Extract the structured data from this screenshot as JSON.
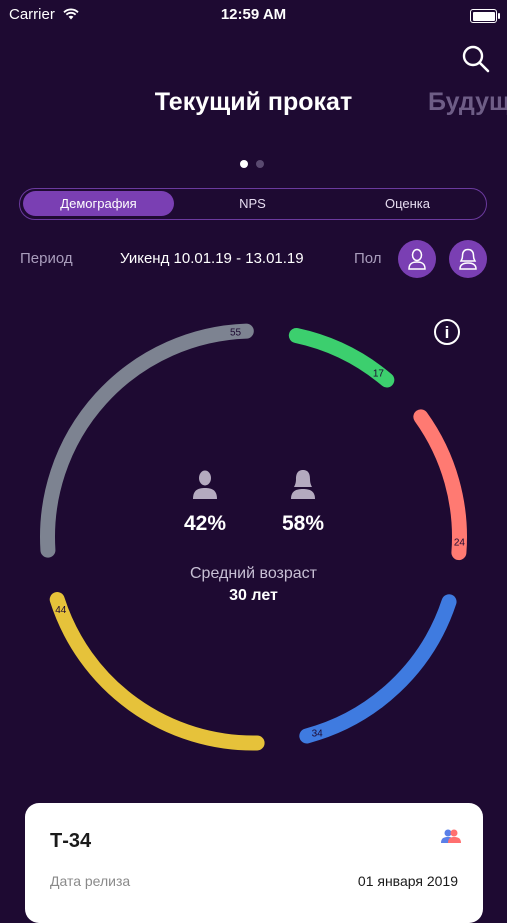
{
  "status_bar": {
    "carrier": "Carrier",
    "time": "12:59 AM"
  },
  "header": {
    "title": "Текущий прокат",
    "next_title_partial": "Будущ"
  },
  "pager": {
    "count": 2,
    "active_index": 0
  },
  "segments": [
    {
      "label": "Демография",
      "active": true
    },
    {
      "label": "NPS",
      "active": false
    },
    {
      "label": "Оценка",
      "active": false
    }
  ],
  "filters": {
    "period_label": "Период",
    "period_value": "Уикенд 10.01.19 - 13.01.19",
    "gender_label": "Пол"
  },
  "chart_data": {
    "type": "pie",
    "style": "ring",
    "values": [
      17,
      24,
      34,
      44,
      55
    ],
    "colors": [
      "#3ccf6e",
      "#ff7a72",
      "#3f7be0",
      "#e6c23a",
      "#7d8391"
    ],
    "center": {
      "male_percent": "42%",
      "female_percent": "58%",
      "avg_age_label": "Средний возраст",
      "avg_age_value": "30 лет"
    }
  },
  "card": {
    "title": "Т-34",
    "rows": [
      {
        "label": "Дата релиза",
        "value": "01 января 2019"
      }
    ]
  },
  "colors": {
    "background": "#1e0a32",
    "accent": "#7a3fb3"
  },
  "icons": [
    "wifi-icon",
    "battery-icon",
    "search-icon",
    "male-icon",
    "female-icon",
    "info-icon",
    "audience-icon"
  ]
}
